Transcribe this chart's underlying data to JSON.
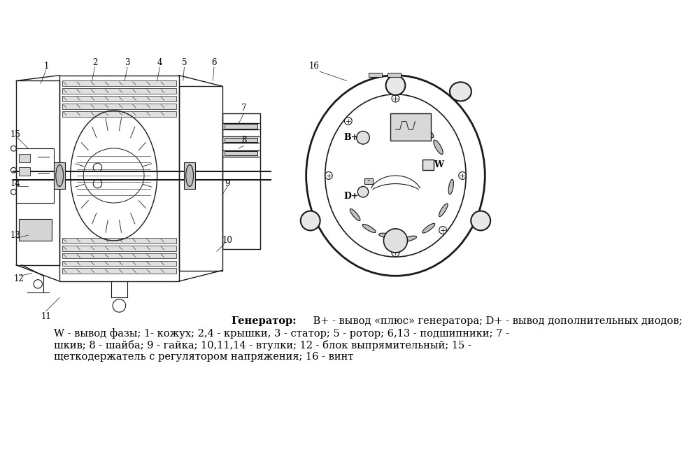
{
  "background_color": "#ffffff",
  "fig_width": 9.75,
  "fig_height": 6.46,
  "dpi": 100,
  "caption_bold_part": "Генератор:",
  "caption_normal_part1": " B+ - вывод «плюс» генератора; D+ - вывод дополнительных диодов;",
  "caption_line2": "W - вывод фазы; 1- кожух; 2,4 - крышки, 3 - статор; 5 - ротор; 6,13 - подшипники; 7 -",
  "caption_line3": "шкив; 8 - шайба; 9 - гайка; 10,11,14 - втулки; 12 - блок выпрямительный; 15 -",
  "caption_line4": "щеткодержатель с регулятором напряжения; 16 - винт",
  "text_color": "#000000",
  "font_size_caption": 10.5,
  "font_size_labels": 9
}
